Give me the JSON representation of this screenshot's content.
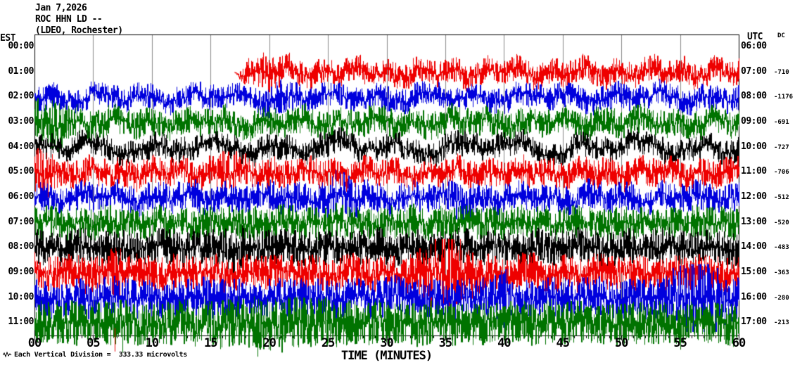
{
  "header": {
    "date_line": "Jan 7,2026",
    "station_line": "ROC HHN LD --",
    "location_line": "(LDEO, Rochester)"
  },
  "left_axis_label": "EST",
  "right_axis_label": "UTC",
  "dc_column_label": "DC",
  "x_axis": {
    "label": "TIME (MINUTES)",
    "tick_labels": [
      "00",
      "05",
      "10",
      "15",
      "20",
      "25",
      "30",
      "35",
      "40",
      "45",
      "50",
      "55",
      "60"
    ],
    "minor_tick_every_minutes": 1,
    "major_tick_every_minutes": 5
  },
  "footer_note": "Each Vertical Division =  333.33 microvolts",
  "colors": {
    "red": "#ee0000",
    "blue": "#0000dd",
    "green": "#007300",
    "black": "#000000",
    "grid": "#888888",
    "border": "#000000",
    "title": "#6b1111",
    "background": "#ffffff"
  },
  "chart_data": {
    "type": "line",
    "subtype": "helicorder-seismogram",
    "title": "ROC HHN LD -- (LDEO, Rochester) Jan 7,2026",
    "x_range_minutes": [
      0,
      60
    ],
    "grid_interval_minutes": 5,
    "hours_per_line": 1,
    "vertical_division_microvolts": 333.33,
    "rows": [
      {
        "est": "00:00",
        "utc": "06:00",
        "dc": null,
        "color": null,
        "start_minute": null
      },
      {
        "est": "01:00",
        "utc": "07:00",
        "dc": -710,
        "color": "red",
        "start_minute": 17,
        "noise_amp": 7,
        "drift_amp": 9,
        "drift_period_min": 2.8,
        "tail": 2.0,
        "bursts": [
          {
            "center": 19.5,
            "width": 1.5,
            "gain": 0.5
          }
        ],
        "spikes": []
      },
      {
        "est": "02:00",
        "utc": "08:00",
        "dc": -1176,
        "color": "blue",
        "start_minute": 0,
        "noise_amp": 7,
        "drift_amp": 9,
        "drift_period_min": 4.0,
        "tail": 2.1,
        "bursts": [
          {
            "center": 21,
            "width": 1.2,
            "gain": 0.4
          }
        ],
        "spikes": []
      },
      {
        "est": "03:00",
        "utc": "09:00",
        "dc": -691,
        "color": "green",
        "start_minute": 0,
        "noise_amp": 8,
        "drift_amp": 8,
        "drift_period_min": 3.2,
        "tail": 2.0,
        "bursts": [
          {
            "center": 1.5,
            "width": 1.6,
            "gain": 0.8
          }
        ],
        "spikes": []
      },
      {
        "est": "04:00",
        "utc": "10:00",
        "dc": -727,
        "color": "black",
        "start_minute": 0,
        "noise_amp": 7,
        "drift_amp": 13,
        "drift_period_min": 5.2,
        "tail": 2.3,
        "bursts": [],
        "spikes": []
      },
      {
        "est": "05:00",
        "utc": "11:00",
        "dc": -706,
        "color": "red",
        "start_minute": 0,
        "noise_amp": 8,
        "drift_amp": 7,
        "drift_period_min": 2.6,
        "tail": 2.0,
        "bursts": [
          {
            "center": 0.6,
            "width": 1.0,
            "gain": 0.8
          },
          {
            "center": 16.5,
            "width": 1.0,
            "gain": 0.6
          }
        ],
        "spikes": []
      },
      {
        "est": "06:00",
        "utc": "12:00",
        "dc": -512,
        "color": "blue",
        "start_minute": 0,
        "noise_amp": 8,
        "drift_amp": 8,
        "drift_period_min": 3.1,
        "tail": 2.0,
        "bursts": [
          {
            "center": 26,
            "width": 1.5,
            "gain": 0.7
          },
          {
            "center": 36.5,
            "width": 1.0,
            "gain": 0.5
          }
        ],
        "spikes": []
      },
      {
        "est": "07:00",
        "utc": "13:00",
        "dc": -520,
        "color": "green",
        "start_minute": 0,
        "noise_amp": 9,
        "drift_amp": 5,
        "drift_period_min": 2.2,
        "tail": 1.9,
        "bursts": [],
        "spikes": []
      },
      {
        "est": "08:00",
        "utc": "14:00",
        "dc": -483,
        "color": "black",
        "start_minute": 0,
        "noise_amp": 10,
        "drift_amp": 5,
        "drift_period_min": 3.6,
        "tail": 1.8,
        "bursts": [
          {
            "center": 17,
            "width": 1.2,
            "gain": 0.4
          }
        ],
        "spikes": []
      },
      {
        "est": "09:00",
        "utc": "15:00",
        "dc": -363,
        "color": "red",
        "start_minute": 0,
        "noise_amp": 10,
        "drift_amp": 4,
        "drift_period_min": 3.0,
        "tail": 1.7,
        "bursts": [
          {
            "center": 35,
            "width": 1.8,
            "gain": 1.6
          },
          {
            "center": 7,
            "width": 0.6,
            "gain": 0.5
          }
        ],
        "spikes": [
          {
            "minute": 6.85,
            "amp": -112
          }
        ]
      },
      {
        "est": "10:00",
        "utc": "16:00",
        "dc": -280,
        "color": "blue",
        "start_minute": 0,
        "noise_amp": 11,
        "drift_amp": 4,
        "drift_period_min": 3.4,
        "tail": 1.7,
        "bursts": [
          {
            "center": 56.5,
            "width": 1.8,
            "gain": 1.5
          },
          {
            "center": 40,
            "width": 1.0,
            "gain": 0.5
          }
        ],
        "spikes": [
          {
            "minute": 55.2,
            "amp": -50
          },
          {
            "minute": 56.1,
            "amp": 38
          }
        ]
      },
      {
        "est": "11:00",
        "utc": "17:00",
        "dc": -213,
        "color": "green",
        "start_minute": 0,
        "noise_amp": 12,
        "drift_amp": 3,
        "drift_period_min": 2.4,
        "tail": 1.5,
        "bursts": [
          {
            "center": 20,
            "width": 5,
            "gain": 0.25
          }
        ],
        "spikes": [
          {
            "minute": 7.5,
            "amp": -42
          },
          {
            "minute": 19,
            "amp": -48
          },
          {
            "minute": 44,
            "amp": 34
          },
          {
            "minute": 55,
            "amp": -38
          }
        ]
      }
    ]
  }
}
